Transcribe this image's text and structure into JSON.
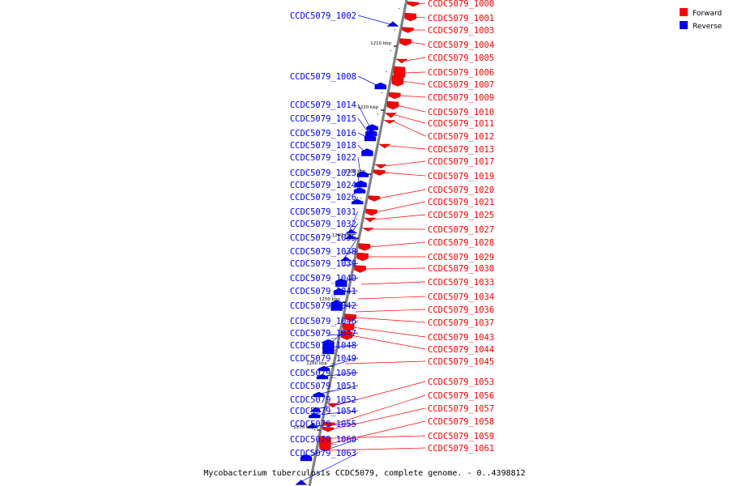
{
  "title": "Mycobacterium tuberculosis CCDC5079, complete genome. - 0..4398812",
  "legend": [
    {
      "label": "Forward",
      "color": "#ff0000"
    },
    {
      "label": "Reverse",
      "color": "#0000ff"
    }
  ],
  "colors": {
    "forward": "#ff0000",
    "reverse": "#0000ff",
    "backbone": "#808080"
  },
  "ticks": [
    "1210 kbp",
    "1220 kbp",
    "1230 kbp",
    "1240 kbp",
    "1250 kbp",
    "1260 kbp",
    "1270 kbp"
  ],
  "forward_genes": [
    "CCDC5079_1000",
    "CCDC5079_1001",
    "CCDC5079_1003",
    "CCDC5079_1004",
    "CCDC5079_1005",
    "CCDC5079_1006",
    "CCDC5079_1007",
    "CCDC5079_1009",
    "CCDC5079_1010",
    "CCDC5079_1011",
    "CCDC5079_1012",
    "CCDC5079_1013",
    "CCDC5079_1017",
    "CCDC5079_1019",
    "CCDC5079_1020",
    "CCDC5079_1021",
    "CCDC5079_1025",
    "CCDC5079_1027",
    "CCDC5079_1028",
    "CCDC5079_1029",
    "CCDC5079_1030",
    "CCDC5079_1033",
    "CCDC5079_1034",
    "CCDC5079_1036",
    "CCDC5079_1037",
    "CCDC5079_1043",
    "CCDC5079_1044",
    "CCDC5079_1045",
    "CCDC5079_1053",
    "CCDC5079_1056",
    "CCDC5079_1057",
    "CCDC5079_1058",
    "CCDC5079_1059",
    "CCDC5079_1061"
  ],
  "reverse_genes": [
    "CCDC5079_1002",
    "CCDC5079_1008",
    "CCDC5079_1014",
    "CCDC5079_1015",
    "CCDC5079_1016",
    "CCDC5079_1018",
    "CCDC5079_1022",
    "CCDC5079_1023",
    "CCDC5079_1024",
    "CCDC5079_1026",
    "CCDC5079_1031",
    "CCDC5079_1032",
    "CCDC5079_1035",
    "CCDC5079_1038",
    "CCDC5079_1039",
    "CCDC5079_1040",
    "CCDC5079_1041",
    "CCDC5079_1042",
    "CCDC5079_1046",
    "CCDC5079_1047",
    "CCDC5079_1048",
    "CCDC5079_1049",
    "CCDC5079_1050",
    "CCDC5079_1051",
    "CCDC5079_1052",
    "CCDC5079_1054",
    "CCDC5079_1055",
    "CCDC5079_1060",
    "CCDC5079_1063"
  ]
}
